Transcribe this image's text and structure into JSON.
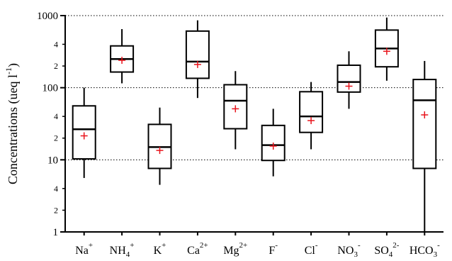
{
  "chart_data": {
    "type": "box",
    "title": "",
    "xlabel": "",
    "ylabel": "Concentrations (ueq l",
    "ylabel_superscript": "-1",
    "ylabel_close": ")",
    "yscale": "log",
    "ylim": [
      1,
      1000
    ],
    "y_major_ticks": [
      {
        "value": 1,
        "label": "1"
      },
      {
        "value": 10,
        "label": "10"
      },
      {
        "value": 100,
        "label": "100"
      },
      {
        "value": 1000,
        "label": "1000"
      }
    ],
    "y_minor_ticks": [
      {
        "value": 2,
        "label": "2"
      },
      {
        "value": 4,
        "label": "4"
      },
      {
        "value": 20,
        "label": "2"
      },
      {
        "value": 40,
        "label": "4"
      },
      {
        "value": 200,
        "label": "2"
      },
      {
        "value": 400,
        "label": "4"
      }
    ],
    "gridlines_at": [
      10,
      100,
      1000
    ],
    "mean_marker_color": "#e8141c",
    "categories": [
      {
        "base": "Na",
        "sub": "",
        "sup": "+"
      },
      {
        "base": "NH",
        "sub": "4",
        "sup": "+"
      },
      {
        "base": "K",
        "sub": "",
        "sup": "+"
      },
      {
        "base": "Ca",
        "sub": "",
        "sup": "2+"
      },
      {
        "base": "Mg",
        "sub": "",
        "sup": "2+"
      },
      {
        "base": "F",
        "sub": "",
        "sup": "-"
      },
      {
        "base": "Cl",
        "sub": "",
        "sup": "-"
      },
      {
        "base": "NO",
        "sub": "3",
        "sup": "-"
      },
      {
        "base": "SO",
        "sub": "4",
        "sup": "2-"
      },
      {
        "base": "HCO",
        "sub": "3",
        "sup": "-"
      }
    ],
    "boxes": [
      {
        "min": 5.6,
        "q1": 10.3,
        "median": 26.5,
        "q3": 56,
        "max": 100,
        "mean": 21.5
      },
      {
        "min": 115,
        "q1": 165,
        "median": 250,
        "q3": 380,
        "max": 650,
        "mean": 240
      },
      {
        "min": 4.5,
        "q1": 7.6,
        "median": 15,
        "q3": 31,
        "max": 53,
        "mean": 13.5
      },
      {
        "min": 72,
        "q1": 135,
        "median": 230,
        "q3": 610,
        "max": 860,
        "mean": 210
      },
      {
        "min": 14,
        "q1": 27,
        "median": 66,
        "q3": 110,
        "max": 170,
        "mean": 51
      },
      {
        "min": 5.9,
        "q1": 9.8,
        "median": 16,
        "q3": 30,
        "max": 51,
        "mean": 15.5
      },
      {
        "min": 14,
        "q1": 24,
        "median": 40,
        "q3": 88,
        "max": 120,
        "mean": 35
      },
      {
        "min": 51,
        "q1": 87,
        "median": 120,
        "q3": 205,
        "max": 320,
        "mean": 105
      },
      {
        "min": 125,
        "q1": 195,
        "median": 350,
        "q3": 630,
        "max": 940,
        "mean": 320
      },
      {
        "min": 1,
        "q1": 7.6,
        "median": 67,
        "q3": 130,
        "max": 235,
        "mean": 42
      }
    ]
  }
}
